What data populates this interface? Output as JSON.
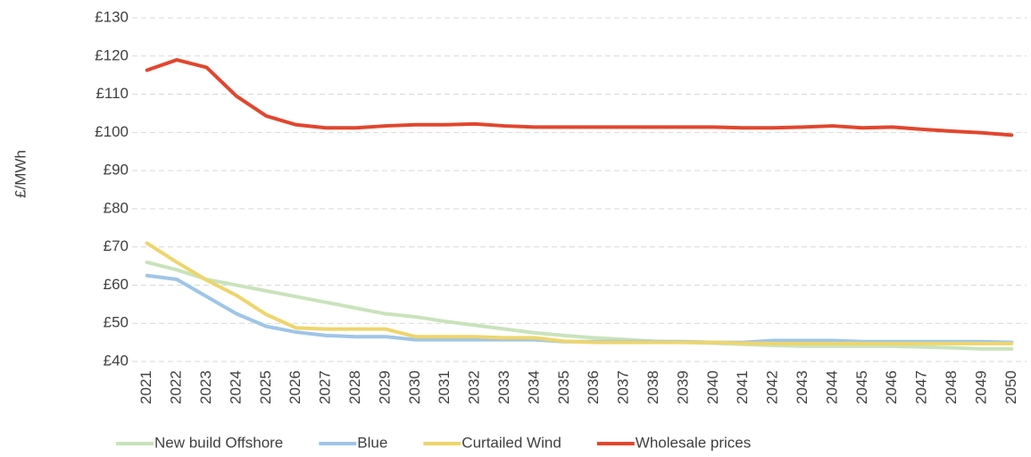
{
  "chart_data": {
    "type": "line",
    "y_label": "£/MWh",
    "categories": [
      "2021",
      "2022",
      "2023",
      "2024",
      "2025",
      "2026",
      "2027",
      "2028",
      "2029",
      "2030",
      "2031",
      "2032",
      "2033",
      "2034",
      "2035",
      "2036",
      "2037",
      "2038",
      "2039",
      "2040",
      "2041",
      "2042",
      "2043",
      "2044",
      "2045",
      "2046",
      "2047",
      "2048",
      "2049",
      "2050"
    ],
    "series": [
      {
        "name": "New build Offshore",
        "color": "#c9e3bb",
        "values": [
          66,
          64,
          61.5,
          60,
          58.5,
          57,
          55.5,
          54,
          52.5,
          51.7,
          50.5,
          49.5,
          48.5,
          47.5,
          46.8,
          46.2,
          45.8,
          45.3,
          45,
          44.8,
          44.5,
          44.2,
          44,
          44,
          44,
          44,
          43.8,
          43.6,
          43.3,
          43.3
        ]
      },
      {
        "name": "Blue",
        "color": "#9fc5e8",
        "values": [
          62.5,
          61.5,
          57,
          52.5,
          49.2,
          47.7,
          46.8,
          46.5,
          46.5,
          45.7,
          45.7,
          45.7,
          45.7,
          45.7,
          45.2,
          45.2,
          45.2,
          45.2,
          45.2,
          45,
          45,
          45.5,
          45.5,
          45.5,
          45.2,
          45.2,
          45.2,
          45.2,
          45.2,
          45
        ]
      },
      {
        "name": "Curtailed Wind",
        "color": "#eed56c",
        "values": [
          71,
          66,
          61.3,
          57.3,
          52.3,
          48.8,
          48.5,
          48.5,
          48.5,
          46.5,
          46.5,
          46.5,
          46.2,
          46.2,
          45.3,
          45,
          45,
          45,
          45,
          45,
          44.8,
          44.7,
          44.7,
          44.7,
          44.7,
          44.7,
          44.7,
          44.7,
          44.7,
          44.7
        ]
      },
      {
        "name": "Wholesale prices",
        "color": "#e2462e",
        "values": [
          116.3,
          119,
          117,
          109.5,
          104.3,
          102,
          101.2,
          101.2,
          101.7,
          102,
          102,
          102.2,
          101.7,
          101.4,
          101.4,
          101.4,
          101.4,
          101.4,
          101.4,
          101.4,
          101.2,
          101.2,
          101.4,
          101.7,
          101.2,
          101.4,
          100.8,
          100.3,
          99.9,
          99.3
        ]
      }
    ],
    "ylim": [
      40,
      130
    ],
    "yticks": [
      {
        "value": 40,
        "label": "£40"
      },
      {
        "value": 50,
        "label": "£50"
      },
      {
        "value": 60,
        "label": "£60"
      },
      {
        "value": 70,
        "label": "£70"
      },
      {
        "value": 80,
        "label": "£80"
      },
      {
        "value": 90,
        "label": "£90"
      },
      {
        "value": 100,
        "label": "£100"
      },
      {
        "value": 110,
        "label": "£110"
      },
      {
        "value": 120,
        "label": "£120"
      },
      {
        "value": 130,
        "label": "£130"
      }
    ],
    "grid": true,
    "legend": "bottom"
  }
}
